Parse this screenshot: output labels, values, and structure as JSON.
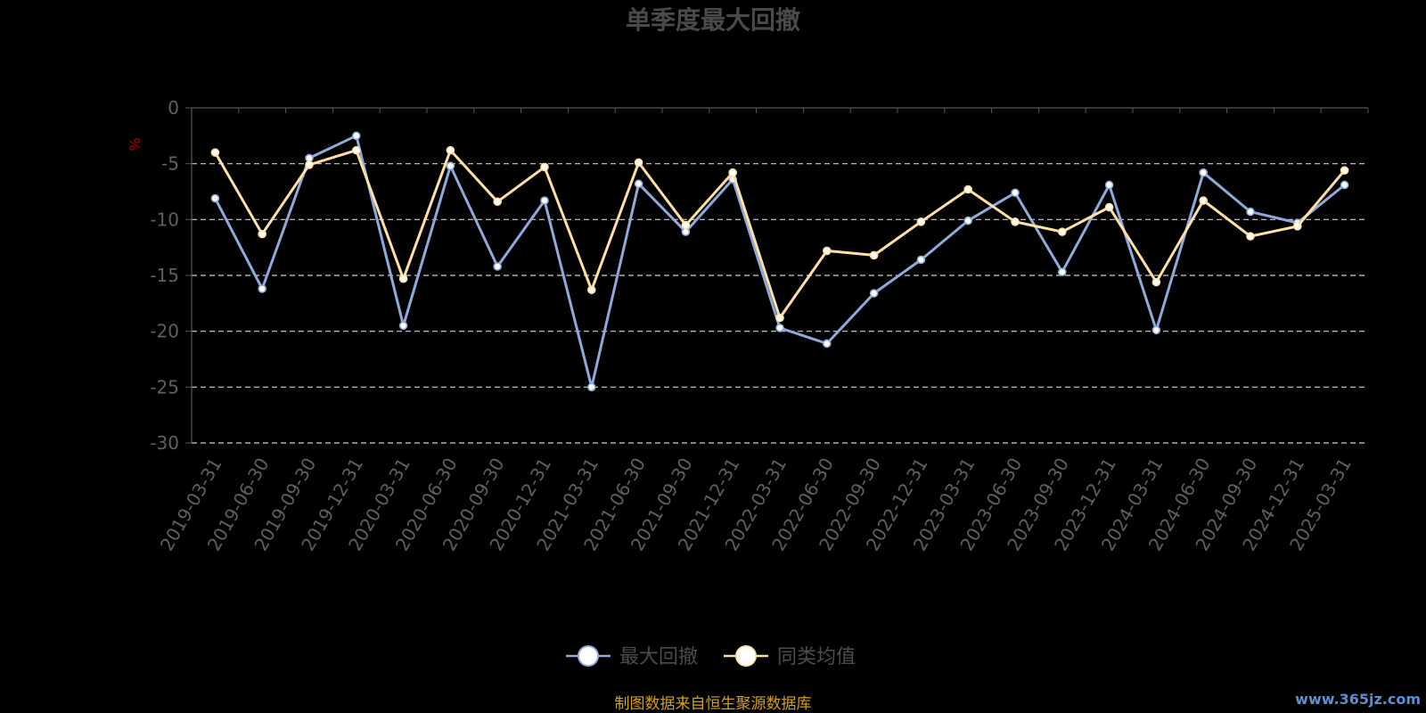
{
  "chart_data": {
    "type": "line",
    "title": "单季度最大回撤",
    "ylabel": "%",
    "ylim": [
      -30,
      0
    ],
    "yticks": [
      0,
      -5,
      -10,
      -15,
      -20,
      -25,
      -30
    ],
    "grid": true,
    "legend_position": "bottom",
    "x": [
      "2019-03-31",
      "2019-06-30",
      "2019-09-30",
      "2019-12-31",
      "2020-03-31",
      "2020-06-30",
      "2020-09-30",
      "2020-12-31",
      "2021-03-31",
      "2021-06-30",
      "2021-09-30",
      "2021-12-31",
      "2022-03-31",
      "2022-06-30",
      "2022-09-30",
      "2022-12-31",
      "2023-03-31",
      "2023-06-30",
      "2023-09-30",
      "2023-12-31",
      "2024-03-31",
      "2024-06-30",
      "2024-09-30",
      "2024-12-31",
      "2025-03-31"
    ],
    "series": [
      {
        "name": "最大回撤",
        "color": "#8eaadb",
        "values": [
          -8.1,
          -16.2,
          -4.5,
          -2.5,
          -19.5,
          -5.2,
          -14.2,
          -8.3,
          -25.0,
          -6.8,
          -11.1,
          -6.4,
          -19.7,
          -21.1,
          -16.6,
          -13.6,
          -10.1,
          -7.6,
          -14.7,
          -6.9,
          -19.9,
          -5.8,
          -9.3,
          -10.3,
          -6.9
        ]
      },
      {
        "name": "同类均值",
        "color": "#ffe0a0",
        "values": [
          -4.0,
          -11.3,
          -5.1,
          -3.8,
          -15.3,
          -3.8,
          -8.4,
          -5.3,
          -16.3,
          -4.9,
          -10.5,
          -5.8,
          -18.8,
          -12.8,
          -13.2,
          -10.2,
          -7.3,
          -10.2,
          -11.1,
          -8.9,
          -15.6,
          -8.3,
          -11.5,
          -10.6,
          -5.6
        ]
      }
    ]
  },
  "footer": {
    "source_text": "制图数据来自恒生聚源数据库",
    "watermark": "www.365jz.com"
  }
}
